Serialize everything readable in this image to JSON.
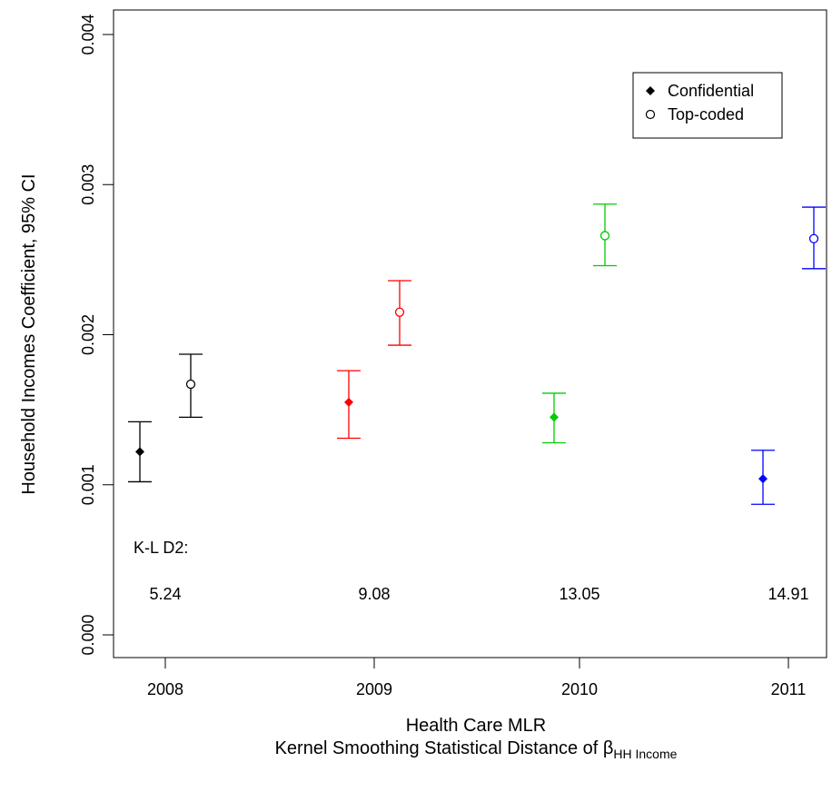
{
  "chart_data": {
    "type": "scatter",
    "subtype": "error-bar",
    "title": "",
    "xlabel_line1": "Health Care MLR",
    "xlabel_line2_prefix": "Kernel Smoothing Statistical Distance of ",
    "xlabel_symbol": "β",
    "xlabel_subscript": "HH Income",
    "ylabel": "Household Incomes Coefficient, 95% CI",
    "ylim": [
      0.0,
      0.004
    ],
    "yticks": [
      "0.000",
      "0.001",
      "0.002",
      "0.003",
      "0.004"
    ],
    "categories": [
      "2008",
      "2009",
      "2010",
      "2011"
    ],
    "legend": {
      "placement": "top-right",
      "entries": [
        {
          "label": "Confidential",
          "marker": "filled-diamond"
        },
        {
          "label": "Top-coded",
          "marker": "open-circle"
        }
      ]
    },
    "series": [
      {
        "name": "Confidential",
        "marker": "filled-diamond",
        "points": [
          {
            "year": "2008",
            "estimate": 0.00122,
            "lower": 0.00102,
            "upper": 0.00142,
            "color": "#000000"
          },
          {
            "year": "2009",
            "estimate": 0.00155,
            "lower": 0.00131,
            "upper": 0.00176,
            "color": "#ff0000"
          },
          {
            "year": "2010",
            "estimate": 0.00145,
            "lower": 0.00128,
            "upper": 0.00161,
            "color": "#00cc00"
          },
          {
            "year": "2011",
            "estimate": 0.00104,
            "lower": 0.00087,
            "upper": 0.00123,
            "color": "#0000ff"
          }
        ]
      },
      {
        "name": "Top-coded",
        "marker": "open-circle",
        "points": [
          {
            "year": "2008",
            "estimate": 0.00167,
            "lower": 0.00145,
            "upper": 0.00187,
            "color": "#000000"
          },
          {
            "year": "2009",
            "estimate": 0.00215,
            "lower": 0.00193,
            "upper": 0.00236,
            "color": "#ff0000"
          },
          {
            "year": "2010",
            "estimate": 0.00266,
            "lower": 0.00246,
            "upper": 0.00287,
            "color": "#00cc00"
          },
          {
            "year": "2011",
            "estimate": 0.00264,
            "lower": 0.00244,
            "upper": 0.00285,
            "color": "#0000ff"
          }
        ]
      }
    ],
    "annotations": {
      "kl_label": "K-L D2:",
      "kl_values": [
        "5.24",
        "9.08",
        "13.05",
        "14.91"
      ]
    }
  }
}
